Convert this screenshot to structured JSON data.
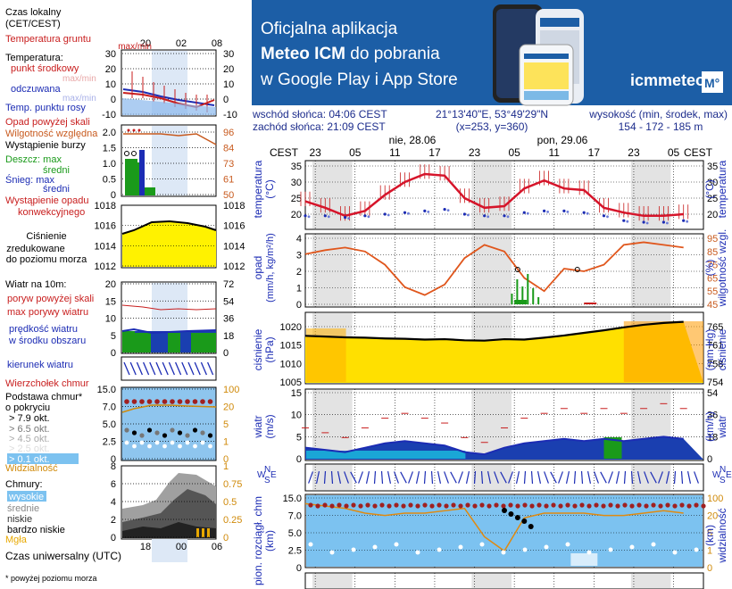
{
  "banner": {
    "line1": "Oficjalna aplikacja",
    "line2_bold": "Meteo ICM",
    "line2_rest": " do pobrania",
    "line3": "w Google Play i App Store",
    "logo_text": "icmmeteo",
    "logo_badge": "M°",
    "colors": {
      "background": "#1a5fa8",
      "accent": "#ffffff"
    }
  },
  "info": {
    "sunrise": "wschód słońca: 04:06 CEST",
    "sunset": "zachód słońca: 21:09 CEST",
    "coords": "21°13'40\"E, 53°49'29\"N",
    "grid": "(x=253,  y=360)",
    "height_label": "wysokość (min, środek, max)",
    "height_values": "154 - 172 - 185 m"
  },
  "legend": {
    "local_time": [
      "Czas lokalny",
      "(CET/CEST)"
    ],
    "local_ticks": [
      "20",
      "02",
      "08"
    ],
    "ground_temp": [
      "Temperatura gruntu",
      "max/min"
    ],
    "temperature": "Temperatura:",
    "mid_point": "punkt środkowy",
    "maxmin1": "max/min",
    "feels_like": "odczuwana",
    "maxmin2": "max/min",
    "dew_point": "Temp. punktu rosy",
    "temp_ticks": [
      "30",
      "20",
      "10",
      "0",
      "-10"
    ],
    "precip_above": "Opad powyżej skali",
    "humidity": "Wilgotność względna",
    "storm": "Wystąpienie burzy",
    "rain": "Deszcz: max",
    "rain_mid": "średni",
    "snow": "Śnieg: max",
    "snow_mid": "średni",
    "precip_occ": [
      "Wystąpienie opadu",
      "konwekcyjnego"
    ],
    "precip_ticks": [
      "2.0",
      "1.5",
      "1.0",
      "0.5",
      "0"
    ],
    "precip_right": [
      "96",
      "84",
      "73",
      "61",
      "50"
    ],
    "pressure": [
      "Ciśnienie",
      "zredukowane",
      "do poziomu morza"
    ],
    "pressure_ticks": [
      "1018",
      "1016",
      "1014",
      "1012"
    ],
    "wind_header": "Wiatr na 10m:",
    "gust_above": "poryw powyżej skali",
    "gust_max": "max porywy wiatru",
    "wind_avg": [
      "prędkość wiatru",
      "w środku obszaru"
    ],
    "wind_ticks": [
      "20",
      "15",
      "10",
      "5",
      "0"
    ],
    "wind_right": [
      "72",
      "54",
      "36",
      "18",
      "0"
    ],
    "wind_dir": "kierunek wiatru",
    "cloud_top": "Wierzchołek chmur",
    "cloud_base": [
      "Podstawa chmur*",
      "o pokryciu"
    ],
    "okt": [
      "> 7.9 okt.",
      "> 6.5 okt.",
      "> 4.5 okt.",
      "> 2.5 okt.",
      "> 0.1 okt."
    ],
    "cloud_ticks": [
      "15.0",
      "7.0",
      "5.0",
      "2.5",
      "0"
    ],
    "cloud_right": [
      "100",
      "20",
      "5",
      "1",
      "0"
    ],
    "visibility": "Widzialność",
    "clouds": "Chmury:",
    "cl_high": "wysokie",
    "cl_mid": "średnie",
    "cl_low": "niskie",
    "cl_vlow": "bardzo niskie",
    "fog": "Mgła",
    "cl_ticks": [
      "8",
      "6",
      "4",
      "2",
      "0"
    ],
    "cl_right": [
      "1",
      "0.75",
      "0.5",
      "0.25",
      "0"
    ],
    "utc_ticks": [
      "18",
      "00",
      "06"
    ],
    "utc": "Czas uniwersalny (UTC)",
    "footnote": "* powyżej poziomu morza"
  },
  "main": {
    "cest": "CEST",
    "day1": "nie, 28.06",
    "day2": "pon, 29.06",
    "hour_ticks": [
      "23",
      "05",
      "11",
      "17",
      "23",
      "05",
      "11",
      "17",
      "23",
      "05"
    ],
    "temp_ylabel": "temperatura",
    "temp_unit": "(°C)",
    "temp_ticks": [
      "35",
      "30",
      "25",
      "20"
    ],
    "precip_ylabel": "opad",
    "precip_unit": "(mm/h, kg/m²/h)",
    "humidity_ylabel": "wilgotność wzgl.",
    "humidity_unit": "(%)",
    "humidity_ticks": [
      "95",
      "85",
      "75",
      "65",
      "55",
      "45"
    ],
    "precip_ticks": [
      "4",
      "3",
      "2",
      "1",
      "0"
    ],
    "pressure_ylabel": "ciśnienie",
    "pressure_unit": "(hPa)",
    "pressure_mmhg_unit": "(mm Hg)",
    "pressure_ticks": [
      "1020",
      "1015",
      "1010",
      "1005"
    ],
    "pressure_mmhg_ticks": [
      "765",
      "761",
      "758",
      "754"
    ],
    "wind_ylabel": "wiatr",
    "wind_unit": "(m/s)",
    "wind_kmh_unit": "(km/h)",
    "wind_ticks": [
      "15",
      "10",
      "5",
      "0"
    ],
    "wind_kmh_ticks": [
      "54",
      "36",
      "18",
      "0"
    ],
    "compass": [
      "N",
      "E",
      "S",
      "W"
    ],
    "cloud_ylabel": "podst. chmur",
    "cloud_prefix": "pion. rozciągł. chm",
    "cloud_unit": "(km)",
    "visibility_ylabel": "widzialność",
    "visibility_unit": "(km)",
    "cloud_ticks": [
      "15.0",
      "7.0",
      "5.0",
      "2.5",
      "0"
    ],
    "vis_ticks": [
      "100",
      "20",
      "5",
      "1",
      "0"
    ]
  },
  "chart_data": [
    {
      "type": "line",
      "title": "",
      "ylabel": "temperatura (°C)",
      "ylim": [
        15,
        37
      ],
      "x_hours": [
        0,
        3,
        6,
        9,
        12,
        15,
        18,
        21,
        24,
        27,
        30,
        33,
        36,
        39,
        42,
        45,
        48,
        51,
        54,
        57
      ],
      "series": [
        {
          "values": [
            24,
            22,
            19.5,
            21,
            26,
            30,
            32.5,
            32,
            25,
            22,
            22.5,
            28,
            30.5,
            28,
            27.5,
            22,
            20.5,
            19.5,
            19.5,
            20
          ]
        },
        {
          "values": [
            19.5,
            19.5,
            19,
            19.5,
            20,
            20.5,
            21,
            21.5,
            20,
            19.5,
            19.5,
            20.5,
            21,
            21,
            20.5,
            19.5,
            18,
            17.5,
            17.5,
            18
          ]
        }
      ]
    },
    {
      "type": "line",
      "ylabel": "opad (mm/h, kg/m²/h)",
      "ylim": [
        0,
        4.5
      ],
      "x_hours": [
        0,
        3,
        6,
        9,
        12,
        15,
        18,
        21,
        24,
        27,
        30,
        33,
        36,
        39,
        42,
        45,
        48,
        51,
        54,
        57
      ],
      "series": [
        {
          "values": [
            83,
            86,
            88,
            85,
            75,
            58,
            52,
            60,
            80,
            90,
            85,
            65,
            55,
            72,
            70,
            75,
            90,
            92,
            90,
            88
          ]
        }
      ]
    },
    {
      "type": "area",
      "ylabel": "ciśnienie (hPa)",
      "ylim": [
        1005,
        1022
      ],
      "x_hours": [
        0,
        3,
        6,
        9,
        12,
        15,
        18,
        21,
        24,
        27,
        30,
        33,
        36,
        39,
        42,
        45,
        48,
        51,
        54,
        57
      ],
      "values": [
        1017.5,
        1017.3,
        1017.1,
        1017.0,
        1016.8,
        1016.7,
        1016.5,
        1016.6,
        1016.3,
        1016.2,
        1016.6,
        1016.5,
        1017,
        1017.6,
        1018.3,
        1019,
        1019.8,
        1020.5,
        1021,
        1021.3
      ]
    },
    {
      "type": "area",
      "ylabel": "wiatr (m/s)",
      "ylim": [
        0,
        15
      ],
      "x_hours": [
        0,
        3,
        6,
        9,
        12,
        15,
        18,
        21,
        24,
        27,
        30,
        33,
        36,
        39,
        42,
        45,
        48,
        51,
        54,
        57
      ],
      "values": [
        2.5,
        2,
        1.5,
        2.5,
        3.5,
        4,
        3.5,
        3,
        1.5,
        1,
        2.5,
        3.5,
        4,
        4.5,
        4,
        4.5,
        4,
        4.5,
        5,
        4.5
      ]
    },
    {
      "type": "scatter",
      "ylabel": "podst. chmur (km)",
      "ylim": [
        0,
        100
      ],
      "x_hours": [
        0,
        3,
        6,
        9,
        12,
        15,
        18,
        21,
        24,
        27,
        30,
        33,
        36,
        39,
        42,
        45,
        48,
        51,
        54,
        57
      ],
      "visibility": [
        24,
        23,
        22,
        20,
        19,
        20,
        20,
        21,
        22,
        10,
        4,
        18,
        20,
        20,
        20,
        19,
        19,
        20,
        21,
        20
      ]
    }
  ]
}
